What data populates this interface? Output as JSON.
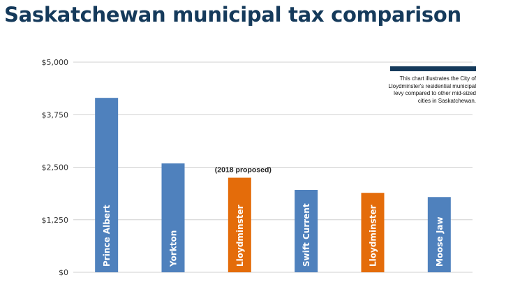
{
  "title": "Saskatchewan municipal tax comparison",
  "note": "This chart illustrates the City of Lloydminster's residential municipal levy compared to other mid-sized cities in Saskatchewan.",
  "colors": {
    "title": "#153a5b",
    "blue": "#4f81bd",
    "orange": "#e46c0a",
    "grid": "#d0d0d0",
    "note_bar": "#153a5b"
  },
  "chart_data": {
    "type": "bar",
    "title": "Saskatchewan municipal tax comparison",
    "categories": [
      "Prince Albert",
      "Yorkton",
      "Lloydminster",
      "Swift Current",
      "Lloydminster",
      "Moose Jaw"
    ],
    "values": [
      4150,
      2590,
      2250,
      1960,
      1890,
      1790
    ],
    "bar_colors": [
      "#4f81bd",
      "#4f81bd",
      "#e46c0a",
      "#4f81bd",
      "#e46c0a",
      "#4f81bd"
    ],
    "annotations": [
      {
        "category_index": 2,
        "text": "(2018 proposed)"
      }
    ],
    "ylim": [
      0,
      5000
    ],
    "yticks": [
      0,
      1250,
      2500,
      3750,
      5000
    ],
    "ytick_labels": [
      "$0",
      "$1,250",
      "$2,500",
      "$3,750",
      "$5,000"
    ],
    "grid": true,
    "xlabel": "",
    "ylabel": ""
  }
}
